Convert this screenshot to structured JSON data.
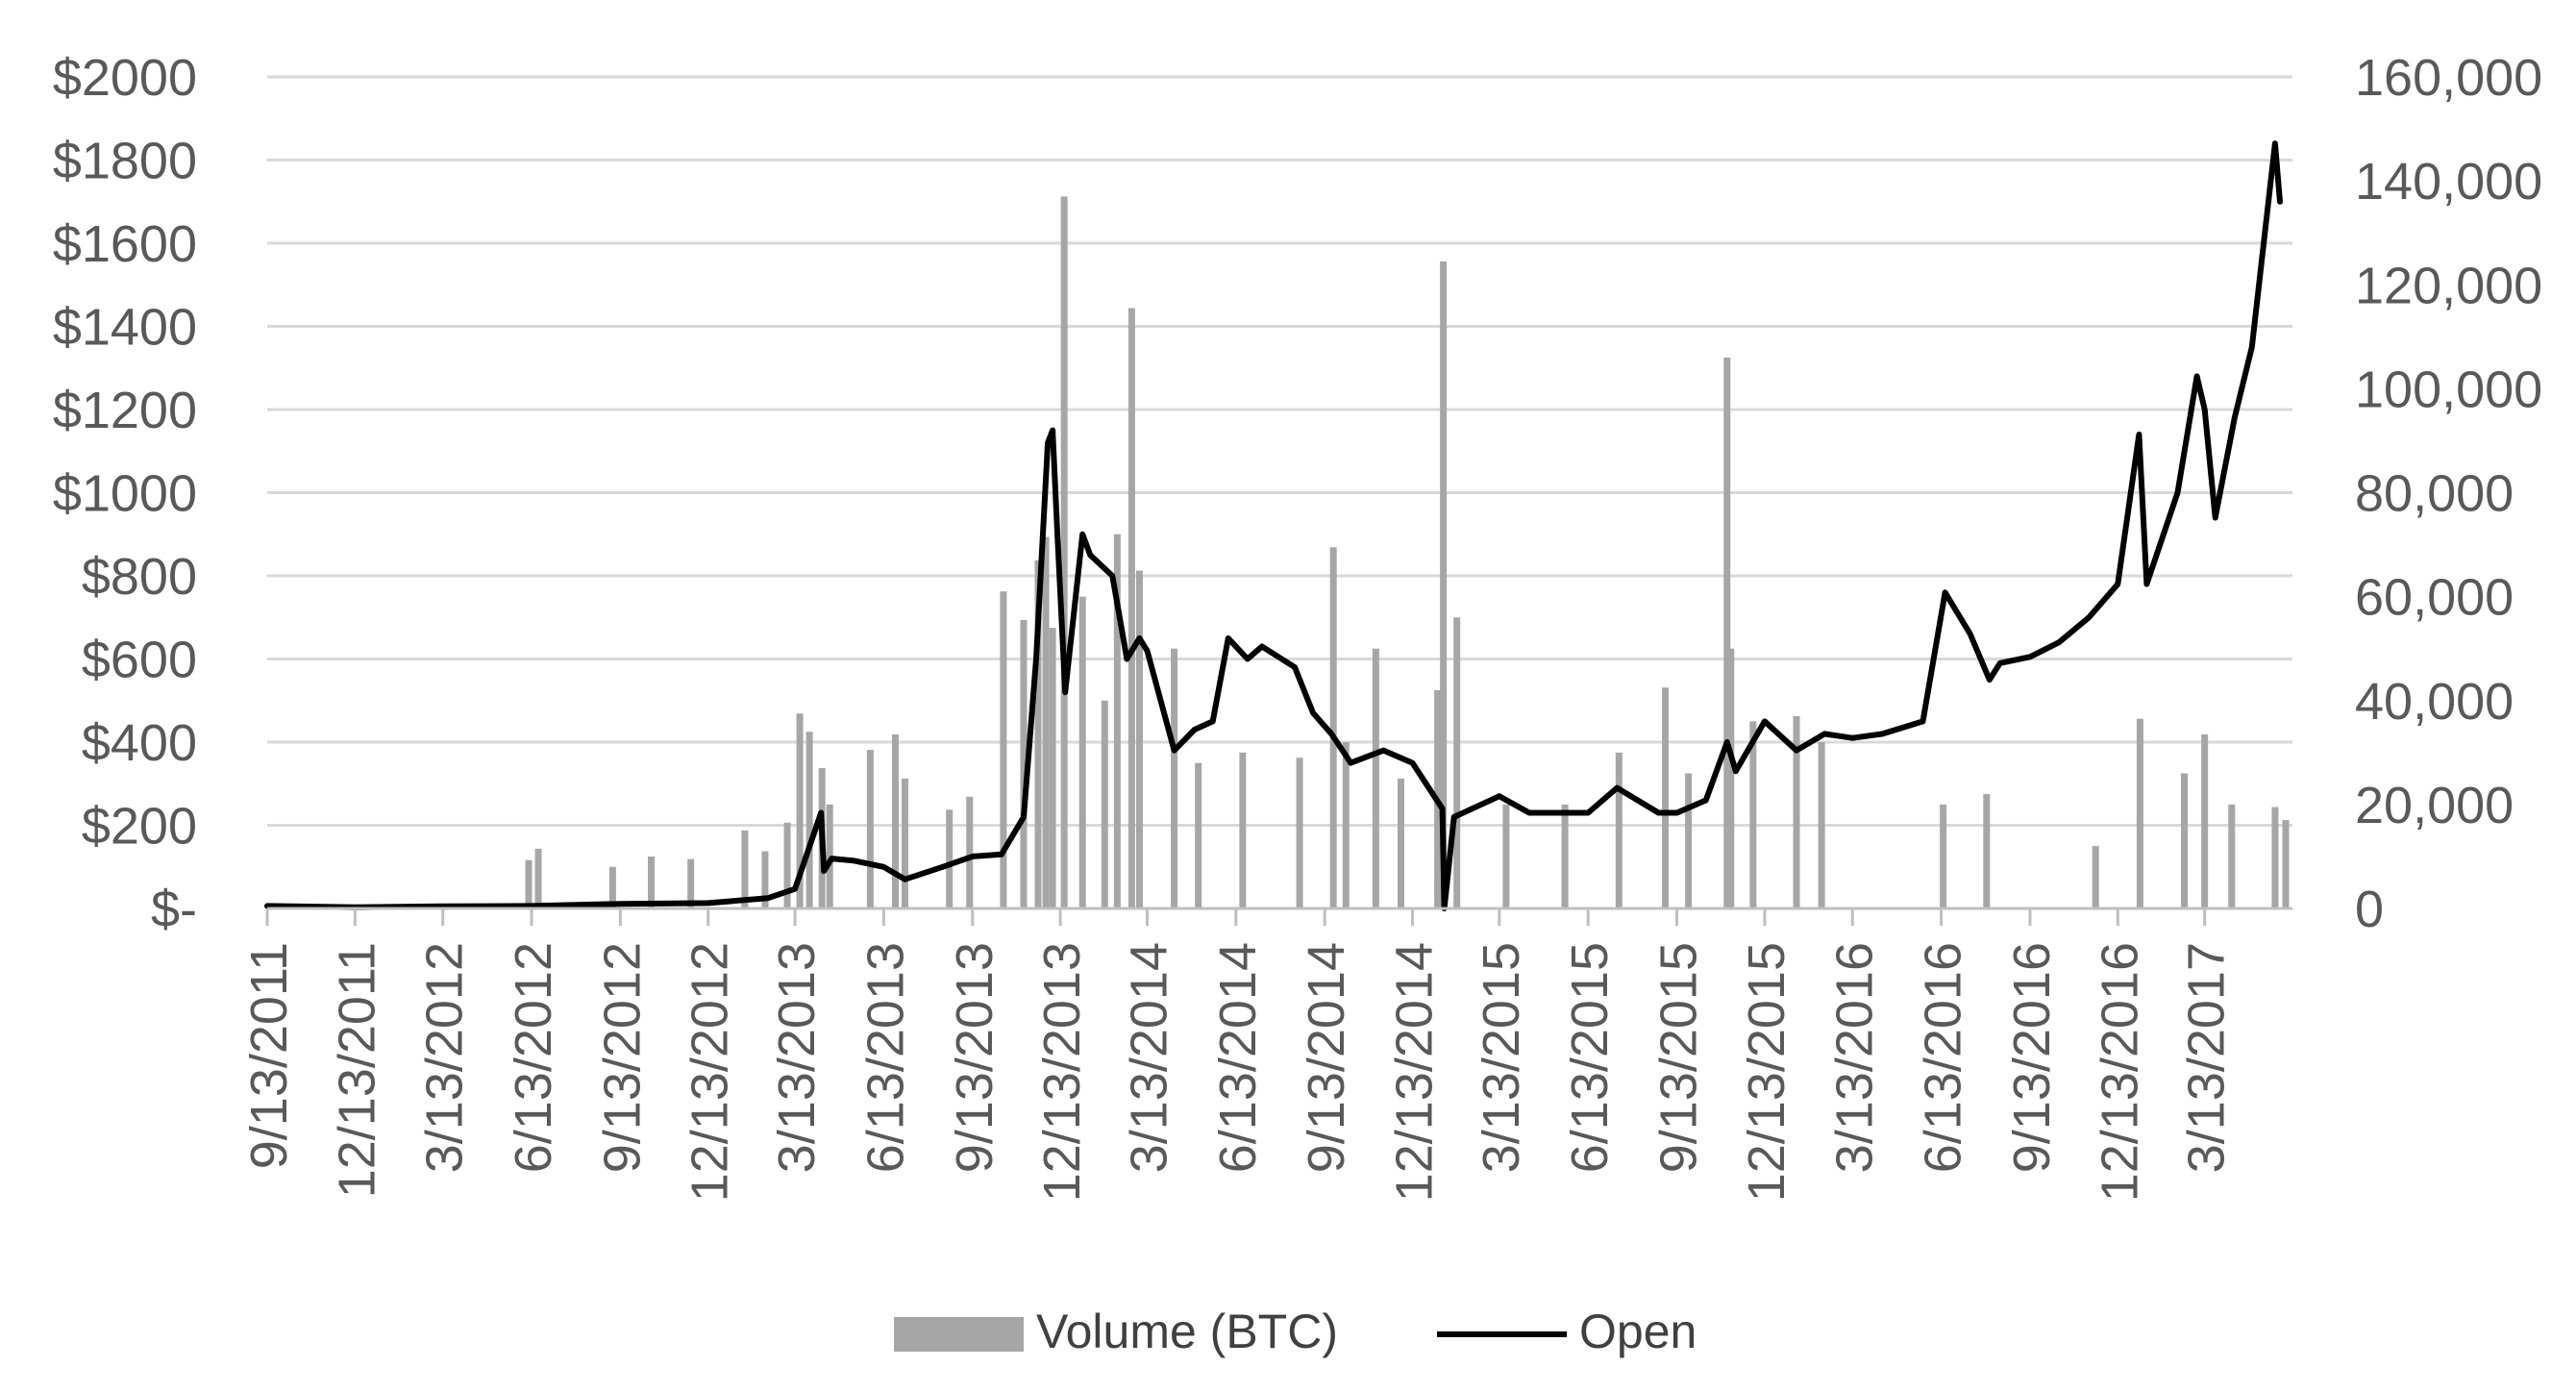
{
  "chart_data": {
    "type": "combo",
    "title": "",
    "xlabel": "",
    "ylabel_left": "",
    "ylabel_right": "",
    "grid": true,
    "legend_position": "bottom",
    "x_range": [
      "2011-09-13",
      "2017-06-12"
    ],
    "x_tick_labels": [
      "9/13/2011",
      "12/13/2011",
      "3/13/2012",
      "6/13/2012",
      "9/13/2012",
      "12/13/2012",
      "3/13/2013",
      "6/13/2013",
      "9/13/2013",
      "12/13/2013",
      "3/13/2014",
      "6/13/2014",
      "9/13/2014",
      "12/13/2014",
      "3/13/2015",
      "6/13/2015",
      "9/13/2015",
      "12/13/2015",
      "3/13/2016",
      "6/13/2016",
      "9/13/2016",
      "12/13/2016",
      "3/13/2017"
    ],
    "y_left_ticks": [
      "$-",
      "$200",
      "$400",
      "$600",
      "$800",
      "$1000",
      "$1200",
      "$1400",
      "$1600",
      "$1800",
      "$2000"
    ],
    "y_left_range": [
      0,
      2000
    ],
    "y_right_ticks": [
      "0",
      "20,000",
      "40,000",
      "60,000",
      "80,000",
      "100,000",
      "120,000",
      "140,000",
      "160,000"
    ],
    "y_right_range": [
      0,
      160000
    ],
    "colors": {
      "volume": "#a6a6a6",
      "open": "#000000",
      "grid": "#d9d9d9",
      "text": "#595959"
    },
    "series": [
      {
        "name": "Volume (BTC)",
        "kind": "bar",
        "axis": "right",
        "points": [
          [
            "2012-06-10",
            9300
          ],
          [
            "2012-06-20",
            11500
          ],
          [
            "2012-09-05",
            8000
          ],
          [
            "2012-10-15",
            10000
          ],
          [
            "2012-11-25",
            9500
          ],
          [
            "2013-01-20",
            15000
          ],
          [
            "2013-02-10",
            11000
          ],
          [
            "2013-03-05",
            16500
          ],
          [
            "2013-03-18",
            37500
          ],
          [
            "2013-03-28",
            34000
          ],
          [
            "2013-04-10",
            27000
          ],
          [
            "2013-04-18",
            20000
          ],
          [
            "2013-05-30",
            30500
          ],
          [
            "2013-06-25",
            33500
          ],
          [
            "2013-07-05",
            25000
          ],
          [
            "2013-08-20",
            19000
          ],
          [
            "2013-09-10",
            21500
          ],
          [
            "2013-10-15",
            61000
          ],
          [
            "2013-11-05",
            55500
          ],
          [
            "2013-11-20",
            67000
          ],
          [
            "2013-11-28",
            71500
          ],
          [
            "2013-12-05",
            54000
          ],
          [
            "2013-12-17",
            137000
          ],
          [
            "2014-01-05",
            60000
          ],
          [
            "2014-01-28",
            40000
          ],
          [
            "2014-02-10",
            72000
          ],
          [
            "2014-02-25",
            115500
          ],
          [
            "2014-03-05",
            65000
          ],
          [
            "2014-04-10",
            50000
          ],
          [
            "2014-05-05",
            28000
          ],
          [
            "2014-06-20",
            30000
          ],
          [
            "2014-08-18",
            29000
          ],
          [
            "2014-09-22",
            69500
          ],
          [
            "2014-10-05",
            32000
          ],
          [
            "2014-11-05",
            50000
          ],
          [
            "2014-12-01",
            25000
          ],
          [
            "2015-01-08",
            42000
          ],
          [
            "2015-01-14",
            124500
          ],
          [
            "2015-01-28",
            56000
          ],
          [
            "2015-03-20",
            20000
          ],
          [
            "2015-05-20",
            20000
          ],
          [
            "2015-07-15",
            30000
          ],
          [
            "2015-09-01",
            42500
          ],
          [
            "2015-09-25",
            26000
          ],
          [
            "2015-11-04",
            106000
          ],
          [
            "2015-11-08",
            50000
          ],
          [
            "2015-12-01",
            36000
          ],
          [
            "2016-01-15",
            37000
          ],
          [
            "2016-02-10",
            32000
          ],
          [
            "2016-06-15",
            20000
          ],
          [
            "2016-07-30",
            22000
          ],
          [
            "2016-11-20",
            12000
          ],
          [
            "2017-01-05",
            36500
          ],
          [
            "2017-02-20",
            26000
          ],
          [
            "2017-03-13",
            33500
          ],
          [
            "2017-04-10",
            20000
          ],
          [
            "2017-05-25",
            19500
          ],
          [
            "2017-06-05",
            17000
          ]
        ]
      },
      {
        "name": "Open",
        "kind": "line",
        "axis": "left",
        "points": [
          [
            "2011-09-13",
            6
          ],
          [
            "2011-12-13",
            3
          ],
          [
            "2012-03-13",
            5
          ],
          [
            "2012-06-13",
            6
          ],
          [
            "2012-09-13",
            11
          ],
          [
            "2012-12-13",
            13
          ],
          [
            "2013-02-13",
            25
          ],
          [
            "2013-03-13",
            47
          ],
          [
            "2013-04-09",
            230
          ],
          [
            "2013-04-12",
            90
          ],
          [
            "2013-04-20",
            120
          ],
          [
            "2013-05-13",
            115
          ],
          [
            "2013-06-13",
            100
          ],
          [
            "2013-07-05",
            70
          ],
          [
            "2013-08-13",
            100
          ],
          [
            "2013-09-13",
            125
          ],
          [
            "2013-10-13",
            130
          ],
          [
            "2013-11-05",
            220
          ],
          [
            "2013-11-18",
            600
          ],
          [
            "2013-11-30",
            1120
          ],
          [
            "2013-12-05",
            1150
          ],
          [
            "2013-12-10",
            900
          ],
          [
            "2013-12-18",
            520
          ],
          [
            "2014-01-05",
            900
          ],
          [
            "2014-01-13",
            850
          ],
          [
            "2014-02-05",
            800
          ],
          [
            "2014-02-20",
            600
          ],
          [
            "2014-03-05",
            650
          ],
          [
            "2014-03-13",
            620
          ],
          [
            "2014-04-10",
            380
          ],
          [
            "2014-05-01",
            430
          ],
          [
            "2014-05-20",
            450
          ],
          [
            "2014-06-05",
            650
          ],
          [
            "2014-06-25",
            600
          ],
          [
            "2014-07-10",
            630
          ],
          [
            "2014-08-13",
            580
          ],
          [
            "2014-09-01",
            470
          ],
          [
            "2014-09-20",
            420
          ],
          [
            "2014-10-10",
            350
          ],
          [
            "2014-11-13",
            380
          ],
          [
            "2014-12-13",
            350
          ],
          [
            "2015-01-13",
            240
          ],
          [
            "2015-01-15",
            0
          ],
          [
            "2015-01-25",
            220
          ],
          [
            "2015-03-13",
            270
          ],
          [
            "2015-04-13",
            230
          ],
          [
            "2015-06-13",
            230
          ],
          [
            "2015-07-13",
            290
          ],
          [
            "2015-08-25",
            230
          ],
          [
            "2015-09-13",
            230
          ],
          [
            "2015-10-13",
            260
          ],
          [
            "2015-11-04",
            400
          ],
          [
            "2015-11-13",
            330
          ],
          [
            "2015-12-13",
            450
          ],
          [
            "2016-01-15",
            380
          ],
          [
            "2016-02-13",
            420
          ],
          [
            "2016-03-13",
            410
          ],
          [
            "2016-04-13",
            420
          ],
          [
            "2016-05-25",
            450
          ],
          [
            "2016-06-17",
            760
          ],
          [
            "2016-07-13",
            660
          ],
          [
            "2016-08-02",
            550
          ],
          [
            "2016-08-13",
            590
          ],
          [
            "2016-09-13",
            605
          ],
          [
            "2016-10-13",
            640
          ],
          [
            "2016-11-13",
            700
          ],
          [
            "2016-12-13",
            780
          ],
          [
            "2017-01-04",
            1140
          ],
          [
            "2017-01-12",
            780
          ],
          [
            "2017-02-13",
            1000
          ],
          [
            "2017-03-05",
            1280
          ],
          [
            "2017-03-13",
            1200
          ],
          [
            "2017-03-24",
            940
          ],
          [
            "2017-04-13",
            1180
          ],
          [
            "2017-05-01",
            1350
          ],
          [
            "2017-05-25",
            1840
          ],
          [
            "2017-05-30",
            1700
          ]
        ]
      }
    ]
  }
}
